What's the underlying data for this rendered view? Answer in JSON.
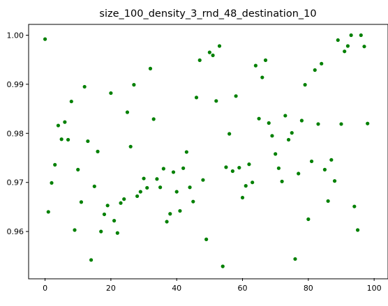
{
  "chart_data": {
    "type": "scatter",
    "title": "size_100_density_3_rnd_48_destination_10",
    "xlabel": "",
    "ylabel": "",
    "xlim": [
      -5,
      104
    ],
    "ylim": [
      0.9505,
      1.0022
    ],
    "xticks": [
      0,
      20,
      40,
      60,
      80,
      100
    ],
    "xtick_labels": [
      "0",
      "20",
      "40",
      "60",
      "80",
      "100"
    ],
    "yticks": [
      0.96,
      0.97,
      0.98,
      0.99,
      1.0
    ],
    "ytick_labels": [
      "0.96",
      "0.97",
      "0.98",
      "0.99",
      "1.00"
    ],
    "grid": false,
    "marker_color": "#008000",
    "series": [
      {
        "points": [
          [
            0,
            0.9992
          ],
          [
            1,
            0.964
          ],
          [
            2,
            0.9699
          ],
          [
            3,
            0.9736
          ],
          [
            4,
            0.9816
          ],
          [
            5,
            0.9788
          ],
          [
            6,
            0.9823
          ],
          [
            7,
            0.9787
          ],
          [
            8,
            0.9865
          ],
          [
            9,
            0.9603
          ],
          [
            10,
            0.9726
          ],
          [
            11,
            0.966
          ],
          [
            12,
            0.9895
          ],
          [
            13,
            0.9784
          ],
          [
            14,
            0.9542
          ],
          [
            15,
            0.9692
          ],
          [
            16,
            0.9763
          ],
          [
            17,
            0.96
          ],
          [
            18,
            0.9635
          ],
          [
            19,
            0.9653
          ],
          [
            20,
            0.9882
          ],
          [
            21,
            0.9622
          ],
          [
            22,
            0.9597
          ],
          [
            23,
            0.9658
          ],
          [
            24,
            0.9666
          ],
          [
            25,
            0.9843
          ],
          [
            26,
            0.9773
          ],
          [
            27,
            0.9899
          ],
          [
            28,
            0.9672
          ],
          [
            29,
            0.9681
          ],
          [
            30,
            0.9708
          ],
          [
            31,
            0.9689
          ],
          [
            32,
            0.9932
          ],
          [
            33,
            0.9829
          ],
          [
            34,
            0.9707
          ],
          [
            35,
            0.969
          ],
          [
            36,
            0.9728
          ],
          [
            37,
            0.962
          ],
          [
            38,
            0.9636
          ],
          [
            39,
            0.9721
          ],
          [
            40,
            0.9681
          ],
          [
            41,
            0.9642
          ],
          [
            42,
            0.9729
          ],
          [
            43,
            0.9762
          ],
          [
            44,
            0.969
          ],
          [
            45,
            0.9661
          ],
          [
            46,
            0.9873
          ],
          [
            47,
            0.9949
          ],
          [
            48,
            0.9705
          ],
          [
            49,
            0.9584
          ],
          [
            50,
            0.9965
          ],
          [
            51,
            0.9959
          ],
          [
            52,
            0.9866
          ],
          [
            53,
            0.9978
          ],
          [
            54,
            0.9529
          ],
          [
            55,
            0.9731
          ],
          [
            56,
            0.9799
          ],
          [
            57,
            0.9723
          ],
          [
            58,
            0.9876
          ],
          [
            59,
            0.973
          ],
          [
            60,
            0.9669
          ],
          [
            61,
            0.9693
          ],
          [
            62,
            0.9737
          ],
          [
            63,
            0.97
          ],
          [
            64,
            0.9938
          ],
          [
            65,
            0.983
          ],
          [
            66,
            0.9914
          ],
          [
            67,
            0.9949
          ],
          [
            68,
            0.9821
          ],
          [
            69,
            0.9795
          ],
          [
            70,
            0.9758
          ],
          [
            71,
            0.9729
          ],
          [
            72,
            0.9702
          ],
          [
            73,
            0.9836
          ],
          [
            74,
            0.9787
          ],
          [
            75,
            0.9801
          ],
          [
            76,
            0.9544
          ],
          [
            77,
            0.9718
          ],
          [
            78,
            0.9826
          ],
          [
            79,
            0.9899
          ],
          [
            80,
            0.9625
          ],
          [
            81,
            0.9743
          ],
          [
            82,
            0.9929
          ],
          [
            83,
            0.9819
          ],
          [
            84,
            0.9942
          ],
          [
            85,
            0.9726
          ],
          [
            86,
            0.9662
          ],
          [
            87,
            0.9746
          ],
          [
            88,
            0.9703
          ],
          [
            89,
            0.999
          ],
          [
            90,
            0.9819
          ],
          [
            91,
            0.9967
          ],
          [
            92,
            0.9978
          ],
          [
            93,
            1.0
          ],
          [
            94,
            0.9651
          ],
          [
            95,
            0.9603
          ],
          [
            96,
            1.0
          ],
          [
            97,
            0.9977
          ],
          [
            98,
            0.982
          ]
        ]
      }
    ]
  }
}
